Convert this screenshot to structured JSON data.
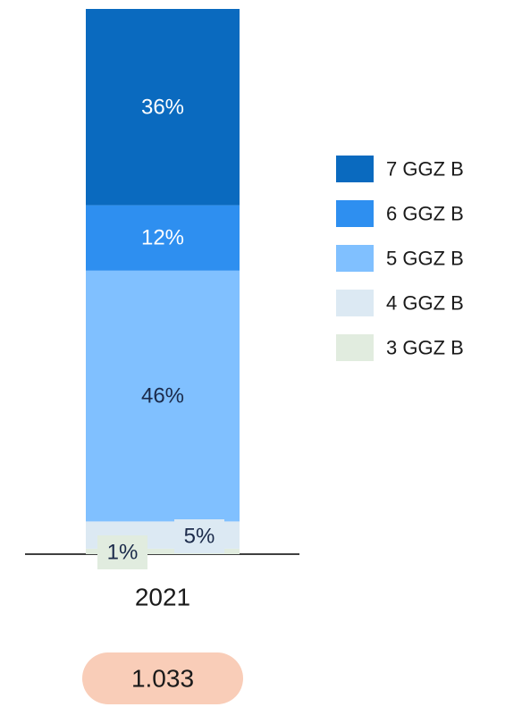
{
  "chart_data": {
    "type": "stacked_bar",
    "categories": [
      "2021"
    ],
    "series": [
      {
        "name": "3 GGZ B",
        "color": "#e1ecdf",
        "values": [
          1
        ],
        "value_labels": [
          "1%"
        ]
      },
      {
        "name": "4 GGZ B",
        "color": "#dce9f3",
        "values": [
          5
        ],
        "value_labels": [
          "5%"
        ]
      },
      {
        "name": "5 GGZ B",
        "color": "#80c0ff",
        "values": [
          46
        ],
        "value_labels": [
          "46%"
        ]
      },
      {
        "name": "6 GGZ B",
        "color": "#2e8ff0",
        "values": [
          12
        ],
        "value_labels": [
          "12%"
        ]
      },
      {
        "name": "7 GGZ B",
        "color": "#0a6abf",
        "values": [
          36
        ],
        "value_labels": [
          "36%"
        ]
      }
    ],
    "total_label": "1.033"
  }
}
